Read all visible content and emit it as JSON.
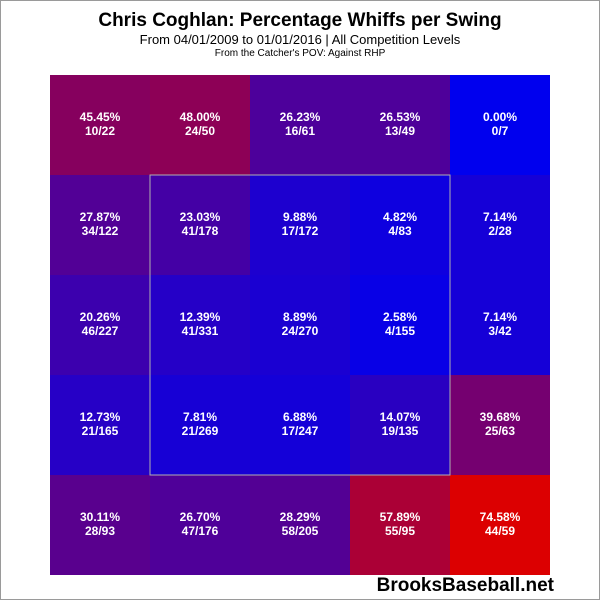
{
  "header": {
    "title": "Chris Coghlan: Percentage Whiffs per Swing",
    "subtitle": "From 04/01/2009 to 01/01/2016 | All Competition Levels",
    "subtitle2": "From the Catcher's POV:   Against RHP"
  },
  "watermark": "BrooksBaseball.net",
  "chart_data": {
    "type": "heatmap",
    "title": "Chris Coghlan: Percentage Whiffs per Swing",
    "rows": 5,
    "cols": 5,
    "strike_zone": "inner 3x3 cells (rows 2-4, cols 2-4)",
    "color_scale": {
      "low": "#0000ee",
      "high": "#dd0000"
    },
    "cells": [
      [
        {
          "pct": "45.45%",
          "ratio": "10/22",
          "value": 45.45
        },
        {
          "pct": "48.00%",
          "ratio": "24/50",
          "value": 48.0
        },
        {
          "pct": "26.23%",
          "ratio": "16/61",
          "value": 26.23
        },
        {
          "pct": "26.53%",
          "ratio": "13/49",
          "value": 26.53
        },
        {
          "pct": "0.00%",
          "ratio": "0/7",
          "value": 0.0
        }
      ],
      [
        {
          "pct": "27.87%",
          "ratio": "34/122",
          "value": 27.87
        },
        {
          "pct": "23.03%",
          "ratio": "41/178",
          "value": 23.03
        },
        {
          "pct": "9.88%",
          "ratio": "17/172",
          "value": 9.88
        },
        {
          "pct": "4.82%",
          "ratio": "4/83",
          "value": 4.82
        },
        {
          "pct": "7.14%",
          "ratio": "2/28",
          "value": 7.14
        }
      ],
      [
        {
          "pct": "20.26%",
          "ratio": "46/227",
          "value": 20.26
        },
        {
          "pct": "12.39%",
          "ratio": "41/331",
          "value": 12.39
        },
        {
          "pct": "8.89%",
          "ratio": "24/270",
          "value": 8.89
        },
        {
          "pct": "2.58%",
          "ratio": "4/155",
          "value": 2.58
        },
        {
          "pct": "7.14%",
          "ratio": "3/42",
          "value": 7.14
        }
      ],
      [
        {
          "pct": "12.73%",
          "ratio": "21/165",
          "value": 12.73
        },
        {
          "pct": "7.81%",
          "ratio": "21/269",
          "value": 7.81
        },
        {
          "pct": "6.88%",
          "ratio": "17/247",
          "value": 6.88
        },
        {
          "pct": "14.07%",
          "ratio": "19/135",
          "value": 14.07
        },
        {
          "pct": "39.68%",
          "ratio": "25/63",
          "value": 39.68
        }
      ],
      [
        {
          "pct": "30.11%",
          "ratio": "28/93",
          "value": 30.11
        },
        {
          "pct": "26.70%",
          "ratio": "47/176",
          "value": 26.7
        },
        {
          "pct": "28.29%",
          "ratio": "58/205",
          "value": 28.29
        },
        {
          "pct": "57.89%",
          "ratio": "55/95",
          "value": 57.89
        },
        {
          "pct": "74.58%",
          "ratio": "44/59",
          "value": 74.58
        }
      ]
    ]
  }
}
